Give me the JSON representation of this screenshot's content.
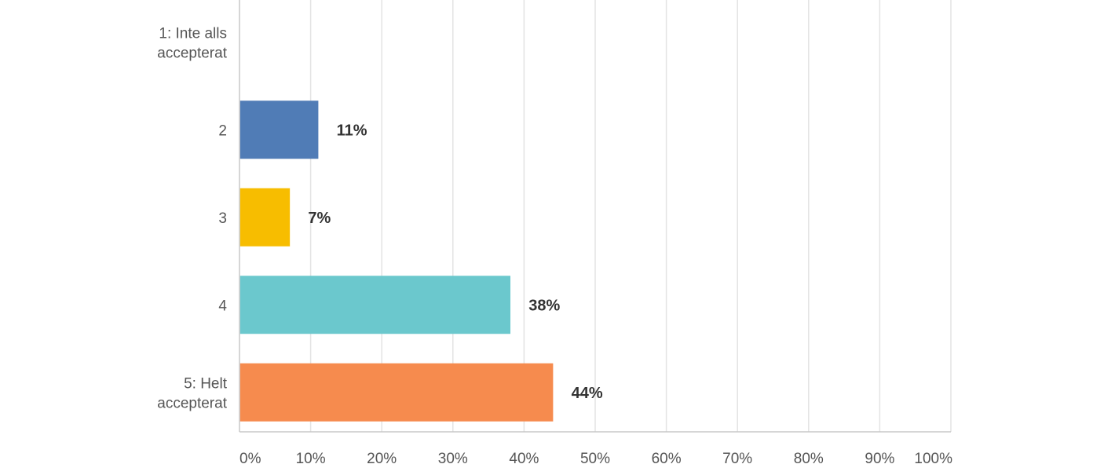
{
  "chart_data": {
    "type": "bar",
    "orientation": "horizontal",
    "categories": [
      [
        "1: Inte alls",
        "accepterat"
      ],
      [
        "2"
      ],
      [
        "3"
      ],
      [
        "4"
      ],
      [
        "5: Helt",
        "accepterat"
      ]
    ],
    "values": [
      0,
      11,
      7,
      38,
      44
    ],
    "data_labels": [
      "",
      "11%",
      "7%",
      "38%",
      "44%"
    ],
    "colors": [
      "#507cb6",
      "#507cb6",
      "#f7bd00",
      "#6bc8cd",
      "#f68b4e"
    ],
    "xlim": [
      0,
      100
    ],
    "x_ticks": [
      0,
      10,
      20,
      30,
      40,
      50,
      60,
      70,
      80,
      90,
      100
    ],
    "x_tick_labels": [
      "0%",
      "10%",
      "20%",
      "30%",
      "40%",
      "50%",
      "60%",
      "70%",
      "80%",
      "90%",
      "100%"
    ],
    "grid": true,
    "legend": false,
    "title": "",
    "xlabel": "",
    "ylabel": ""
  }
}
